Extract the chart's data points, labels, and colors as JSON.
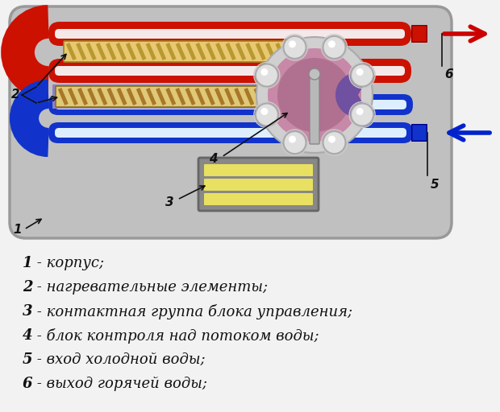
{
  "fig_bg": "#f2f2f2",
  "box_bg": "#c0c0c0",
  "box_edge": "#999999",
  "red_pipe": "#cc1100",
  "red_light": "#ff6655",
  "red_white": "#f5e8e8",
  "blue_pipe": "#1133cc",
  "blue_light": "#4466ee",
  "blue_white": "#ddeeff",
  "heater_bg": "#e8c870",
  "heater_stripe": "#b89830",
  "heater_dark": "#806010",
  "fc_outer": "#d0d0d0",
  "fc_mid": "#b0b0b8",
  "fc_purple": "#9060a0",
  "fc_pink": "#c080a0",
  "ball_color": "#e0e0e0",
  "ball_edge": "#aaaaaa",
  "cb_bg": "#888888",
  "cb_edge": "#666666",
  "cb_bar": "#e8e060",
  "rod_color": "#aaaaaa",
  "arrow_red": "#cc0000",
  "arrow_blue": "#0022cc",
  "conn_red": "#cc1100",
  "conn_blue": "#1133cc",
  "label_color": "#111111",
  "legend_items": [
    {
      "num": "1",
      "text": " - корпус;"
    },
    {
      "num": "2",
      "text": " - нагревательные элементы;"
    },
    {
      "num": "3",
      "text": " - контактная группа блока управления;"
    },
    {
      "num": "4",
      "text": " - блок контроля над потоком воды;"
    },
    {
      "num": "5",
      "text": " - вход холодной воды;"
    },
    {
      "num": "6",
      "text": " - выход горячей воды;"
    }
  ]
}
